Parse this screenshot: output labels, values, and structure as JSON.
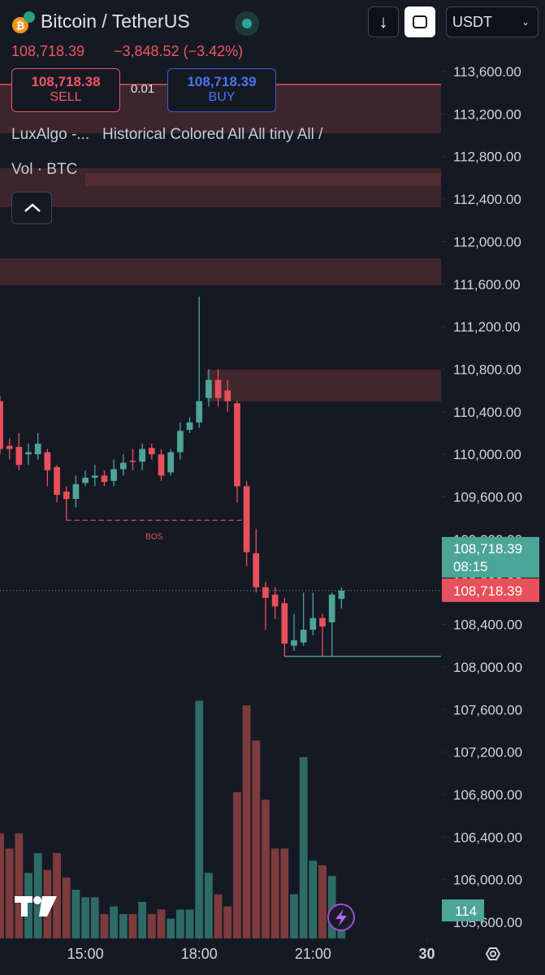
{
  "header": {
    "symbol": "Bitcoin / TetherUS",
    "price": "108,718.39",
    "change": "−3,848.52 (−3.42%)",
    "sell_price": "108,718.38",
    "sell": "SELL",
    "spread": "0.01",
    "buy_price": "108,718.39",
    "buy": "BUY",
    "currency": "USDT",
    "indicator_name": "LuxAlgo -...",
    "indicator_settings": "Historical Colored All All tiny All /",
    "volume_indicator": "Vol · BTC"
  },
  "chart_data": {
    "type": "candlestick",
    "up_color": "#4da597",
    "down_color": "#e8505b",
    "open": [
      110500,
      110080,
      110070,
      110000,
      110000,
      110020,
      109880,
      109650,
      109580,
      109730,
      109780,
      109800,
      109750,
      109860,
      109940,
      109930,
      110060,
      110000,
      109830,
      110020,
      110230,
      110300,
      110530,
      110700,
      110600,
      110480,
      109700,
      109070,
      108750,
      108680,
      108600,
      108200,
      108230,
      108350,
      108460,
      108420,
      108640
    ],
    "high": [
      110550,
      110150,
      110200,
      110100,
      110200,
      110050,
      109900,
      109700,
      109800,
      109850,
      109900,
      109850,
      109950,
      110000,
      110050,
      110100,
      110100,
      110050,
      110050,
      110300,
      110350,
      111484,
      110800,
      110800,
      110700,
      110500,
      109750,
      109300,
      108800,
      108750,
      108650,
      108500,
      108700,
      108700,
      108500,
      108700,
      108750
    ],
    "low": [
      110000,
      109950,
      109850,
      109900,
      109950,
      109700,
      109550,
      109380,
      109500,
      109700,
      109700,
      109700,
      109700,
      109800,
      109850,
      109850,
      109950,
      109750,
      109800,
      109950,
      110200,
      110250,
      110450,
      110450,
      110400,
      109550,
      108950,
      108700,
      108350,
      108450,
      108100,
      108150,
      108200,
      108300,
      108100,
      108100,
      108550
    ],
    "close": [
      110050,
      110050,
      109900,
      110020,
      110100,
      109850,
      109620,
      109580,
      109720,
      109780,
      109800,
      109740,
      109860,
      109920,
      109930,
      110050,
      110000,
      109800,
      110020,
      110220,
      110300,
      110500,
      110700,
      110530,
      110500,
      109700,
      109080,
      108750,
      108650,
      108570,
      108220,
      108250,
      108350,
      108460,
      108380,
      108680,
      108718.39
    ],
    "volume": {
      "values": [
        690,
        590,
        690,
        430,
        560,
        450,
        560,
        400,
        320,
        270,
        270,
        160,
        210,
        160,
        160,
        240,
        160,
        190,
        130,
        190,
        190,
        1560,
        430,
        290,
        210,
        960,
        1530,
        1300,
        910,
        590,
        590,
        290,
        1190,
        510,
        480,
        410,
        114
      ],
      "ylim": [
        0,
        1600
      ],
      "up_color": "#2e6b66",
      "down_color": "#7d3b3e"
    },
    "xlim": [
      0,
      46.5
    ],
    "xticks": [
      {
        "value": 9,
        "label": "15:00"
      },
      {
        "value": 21,
        "label": "18:00"
      },
      {
        "value": 33,
        "label": "21:00"
      },
      {
        "value": 45,
        "label": "30"
      }
    ],
    "ylim": [
      105600,
      113600
    ],
    "yticks": [
      {
        "value": 113600,
        "label": "113,600.00"
      },
      {
        "value": 113200,
        "label": "113,200.00"
      },
      {
        "value": 112800,
        "label": "112,800.00"
      },
      {
        "value": 112400,
        "label": "112,400.00"
      },
      {
        "value": 112000,
        "label": "112,000.00"
      },
      {
        "value": 111600,
        "label": "111,600.00"
      },
      {
        "value": 111200,
        "label": "111,200.00"
      },
      {
        "value": 110800,
        "label": "110,800.00"
      },
      {
        "value": 110400,
        "label": "110,400.00"
      },
      {
        "value": 110000,
        "label": "110,000.00"
      },
      {
        "value": 109600,
        "label": "109,600.00"
      },
      {
        "value": 109200,
        "label": "109,200.00"
      },
      {
        "value": 108800,
        "label": "108,800.00"
      },
      {
        "value": 108400,
        "label": "108,400.00"
      },
      {
        "value": 108000,
        "label": "108,000.00"
      },
      {
        "value": 107600,
        "label": "107,600.00"
      },
      {
        "value": 107200,
        "label": "107,200.00"
      },
      {
        "value": 106800,
        "label": "106,800.00"
      },
      {
        "value": 106400,
        "label": "106,400.00"
      },
      {
        "value": 106000,
        "label": "106,000.00"
      },
      {
        "value": 105600,
        "label": "105,600.00"
      }
    ],
    "bos_label": "BOS",
    "price_badge": {
      "price": "108,718.39",
      "countdown": "08:15"
    },
    "last_badge": "108,718.39"
  }
}
